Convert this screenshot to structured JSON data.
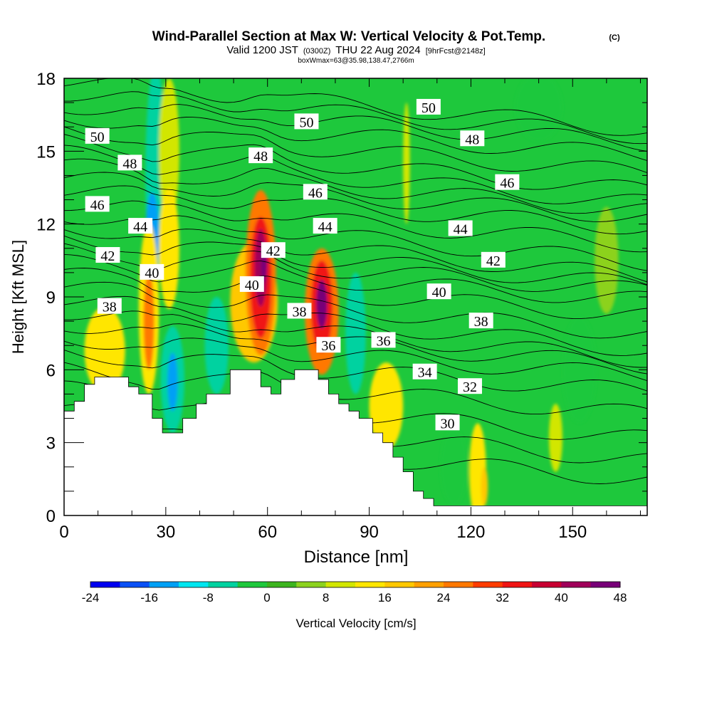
{
  "chart_data": {
    "type": "heatmap",
    "title": "Wind-Parallel Section at Max W: Vertical Velocity & Pot.Temp.",
    "title_suffix": "(C)",
    "subtitle_parts": [
      "Valid 1200 JST",
      "(0300Z)",
      "THU 22 Aug 2024",
      "[9hrFcst@2148z]"
    ],
    "subtitle2": "boxWmax=63@35.98,138.47,2766m",
    "xlabel": "Distance [nm]",
    "ylabel": "Height [Kft MSL]",
    "xlim": [
      0,
      172
    ],
    "ylim": [
      0,
      18
    ],
    "x_ticks": [
      "0",
      "30",
      "60",
      "90",
      "120",
      "150"
    ],
    "x_tick_values": [
      0,
      30,
      60,
      90,
      120,
      150
    ],
    "y_ticks": [
      "0",
      "3",
      "6",
      "9",
      "12",
      "15",
      "18"
    ],
    "y_tick_values": [
      0,
      3,
      6,
      9,
      12,
      15,
      18
    ],
    "colorbar": {
      "label": "Vertical Velocity [cm/s]",
      "min": -24,
      "max": 48,
      "step": 4,
      "tick_labels": [
        "-24",
        "-16",
        "-8",
        "0",
        "8",
        "16",
        "24",
        "32",
        "40",
        "48"
      ],
      "tick_values": [
        -24,
        -16,
        -8,
        0,
        8,
        16,
        24,
        32,
        40,
        48
      ],
      "colors": [
        "#0000f0",
        "#0a50f5",
        "#00a0f5",
        "#00e6f0",
        "#00d2a0",
        "#1ec83c",
        "#3cb41e",
        "#8cd21e",
        "#d2e600",
        "#ffe600",
        "#ffc800",
        "#ffa000",
        "#ff7800",
        "#ff3c00",
        "#f01414",
        "#c80032",
        "#a0005a",
        "#780078"
      ]
    },
    "theta_contour_labels": [
      {
        "value": "50",
        "x": 9.8,
        "y": 15.6
      },
      {
        "value": "50",
        "x": 71.5,
        "y": 16.2
      },
      {
        "value": "50",
        "x": 107.5,
        "y": 16.8
      },
      {
        "value": "48",
        "x": 19.4,
        "y": 14.5
      },
      {
        "value": "48",
        "x": 58.0,
        "y": 14.8
      },
      {
        "value": "48",
        "x": 120.4,
        "y": 15.5
      },
      {
        "value": "46",
        "x": 9.8,
        "y": 12.8
      },
      {
        "value": "46",
        "x": 74.1,
        "y": 13.3
      },
      {
        "value": "46",
        "x": 130.7,
        "y": 13.7
      },
      {
        "value": "44",
        "x": 22.5,
        "y": 11.9
      },
      {
        "value": "44",
        "x": 77.0,
        "y": 11.9
      },
      {
        "value": "44",
        "x": 116.9,
        "y": 11.8
      },
      {
        "value": "42",
        "x": 12.9,
        "y": 10.7
      },
      {
        "value": "42",
        "x": 61.7,
        "y": 10.9
      },
      {
        "value": "42",
        "x": 126.6,
        "y": 10.5
      },
      {
        "value": "40",
        "x": 25.9,
        "y": 10.0
      },
      {
        "value": "40",
        "x": 55.4,
        "y": 9.5
      },
      {
        "value": "40",
        "x": 110.6,
        "y": 9.2
      },
      {
        "value": "38",
        "x": 13.4,
        "y": 8.6
      },
      {
        "value": "38",
        "x": 69.4,
        "y": 8.4
      },
      {
        "value": "38",
        "x": 123.0,
        "y": 8.0
      },
      {
        "value": "36",
        "x": 78.0,
        "y": 7.0
      },
      {
        "value": "36",
        "x": 94.2,
        "y": 7.2
      },
      {
        "value": "34",
        "x": 106.4,
        "y": 5.9
      },
      {
        "value": "32",
        "x": 119.7,
        "y": 5.3
      },
      {
        "value": "30",
        "x": 113.1,
        "y": 3.8
      }
    ],
    "vertical_velocity_cells": [
      {
        "x": 27,
        "y": 14.0,
        "rx": 3,
        "ry": 4.5,
        "value": -8
      },
      {
        "x": 26,
        "y": 11.5,
        "rx": 2,
        "ry": 1.8,
        "value": -16
      },
      {
        "x": 31,
        "y": 15.0,
        "rx": 3,
        "ry": 3.0,
        "value": 8
      },
      {
        "x": 31,
        "y": 11.0,
        "rx": 3,
        "ry": 2.5,
        "value": 12
      },
      {
        "x": 25,
        "y": 8.5,
        "rx": 3,
        "ry": 3.5,
        "value": 12
      },
      {
        "x": 25,
        "y": 8.0,
        "rx": 1.6,
        "ry": 2.0,
        "value": 24
      },
      {
        "x": 12,
        "y": 6.8,
        "rx": 6,
        "ry": 1.8,
        "value": 12
      },
      {
        "x": 32,
        "y": 5.6,
        "rx": 3.5,
        "ry": 2.2,
        "value": -8
      },
      {
        "x": 32,
        "y": 5.5,
        "rx": 1.5,
        "ry": 1.2,
        "value": -16
      },
      {
        "x": 45,
        "y": 7.0,
        "rx": 3.5,
        "ry": 2.0,
        "value": -8
      },
      {
        "x": 56,
        "y": 8.8,
        "rx": 7,
        "ry": 2.5,
        "value": 16
      },
      {
        "x": 58,
        "y": 10.0,
        "rx": 4.5,
        "ry": 3.4,
        "value": 24
      },
      {
        "x": 58,
        "y": 9.8,
        "rx": 3.2,
        "ry": 2.5,
        "value": 32
      },
      {
        "x": 58,
        "y": 10.2,
        "rx": 1.8,
        "ry": 1.6,
        "value": 40
      },
      {
        "x": 59,
        "y": 10.4,
        "rx": 0.9,
        "ry": 0.8,
        "value": 48
      },
      {
        "x": 76,
        "y": 8.4,
        "rx": 5,
        "ry": 2.6,
        "value": 24
      },
      {
        "x": 76,
        "y": 8.6,
        "rx": 3.2,
        "ry": 1.9,
        "value": 32
      },
      {
        "x": 76,
        "y": 8.7,
        "rx": 1.6,
        "ry": 1.0,
        "value": 44
      },
      {
        "x": 86,
        "y": 7.5,
        "rx": 3,
        "ry": 2.5,
        "value": -8
      },
      {
        "x": 95,
        "y": 4.5,
        "rx": 5,
        "ry": 1.8,
        "value": 12
      },
      {
        "x": 101,
        "y": 14.5,
        "rx": 1,
        "ry": 2.5,
        "value": 8
      },
      {
        "x": 122,
        "y": 1.8,
        "rx": 2.5,
        "ry": 2.0,
        "value": 12
      },
      {
        "x": 124,
        "y": 1.2,
        "rx": 1,
        "ry": 0.8,
        "value": 16
      },
      {
        "x": 115,
        "y": 2.0,
        "rx": 4,
        "ry": 1.6,
        "value": -4
      },
      {
        "x": 145,
        "y": 3.2,
        "rx": 2,
        "ry": 1.4,
        "value": 8
      },
      {
        "x": 152,
        "y": 6.0,
        "rx": 5,
        "ry": 2.2,
        "value": -4
      },
      {
        "x": 140,
        "y": 16.8,
        "rx": 7,
        "ry": 1.4,
        "value": -4
      },
      {
        "x": 160,
        "y": 10.5,
        "rx": 3.5,
        "ry": 2.2,
        "value": 4
      }
    ],
    "terrain_kft": [
      [
        0,
        4.3
      ],
      [
        3,
        4.3
      ],
      [
        3,
        4.7
      ],
      [
        6,
        4.7
      ],
      [
        6,
        5.4
      ],
      [
        9,
        5.4
      ],
      [
        9,
        5.7
      ],
      [
        19,
        5.7
      ],
      [
        19,
        5.3
      ],
      [
        22,
        5.3
      ],
      [
        22,
        5.0
      ],
      [
        26,
        5.0
      ],
      [
        26,
        4.0
      ],
      [
        29,
        4.0
      ],
      [
        29,
        3.4
      ],
      [
        35,
        3.4
      ],
      [
        35,
        4.0
      ],
      [
        39,
        4.0
      ],
      [
        39,
        4.6
      ],
      [
        42,
        4.6
      ],
      [
        42,
        5.0
      ],
      [
        49,
        5.0
      ],
      [
        49,
        6.0
      ],
      [
        58,
        6.0
      ],
      [
        58,
        5.3
      ],
      [
        61,
        5.3
      ],
      [
        61,
        5.0
      ],
      [
        64,
        5.0
      ],
      [
        64,
        5.6
      ],
      [
        68,
        5.6
      ],
      [
        68,
        6.0
      ],
      [
        75,
        6.0
      ],
      [
        75,
        5.6
      ],
      [
        78,
        5.6
      ],
      [
        78,
        5.0
      ],
      [
        81,
        5.0
      ],
      [
        81,
        4.6
      ],
      [
        84,
        4.6
      ],
      [
        84,
        4.3
      ],
      [
        87,
        4.3
      ],
      [
        87,
        4.0
      ],
      [
        91,
        4.0
      ],
      [
        91,
        3.4
      ],
      [
        94,
        3.4
      ],
      [
        94,
        3.0
      ],
      [
        97,
        3.0
      ],
      [
        97,
        2.4
      ],
      [
        100,
        2.4
      ],
      [
        100,
        1.8
      ],
      [
        103,
        1.8
      ],
      [
        103,
        1.0
      ],
      [
        106,
        1.0
      ],
      [
        106,
        0.7
      ],
      [
        109,
        0.7
      ],
      [
        109,
        0.4
      ],
      [
        172,
        0.4
      ]
    ],
    "theta_lines_y_left": [
      3.3,
      4.3,
      5.2,
      6.0,
      6.7,
      7.3,
      7.9,
      8.4,
      8.9,
      9.4,
      9.9,
      10.4,
      10.9,
      11.4,
      11.9,
      12.4,
      12.9,
      13.4,
      13.9,
      14.4,
      14.9,
      15.4,
      15.9,
      16.4,
      16.9,
      17.4,
      17.9
    ]
  }
}
